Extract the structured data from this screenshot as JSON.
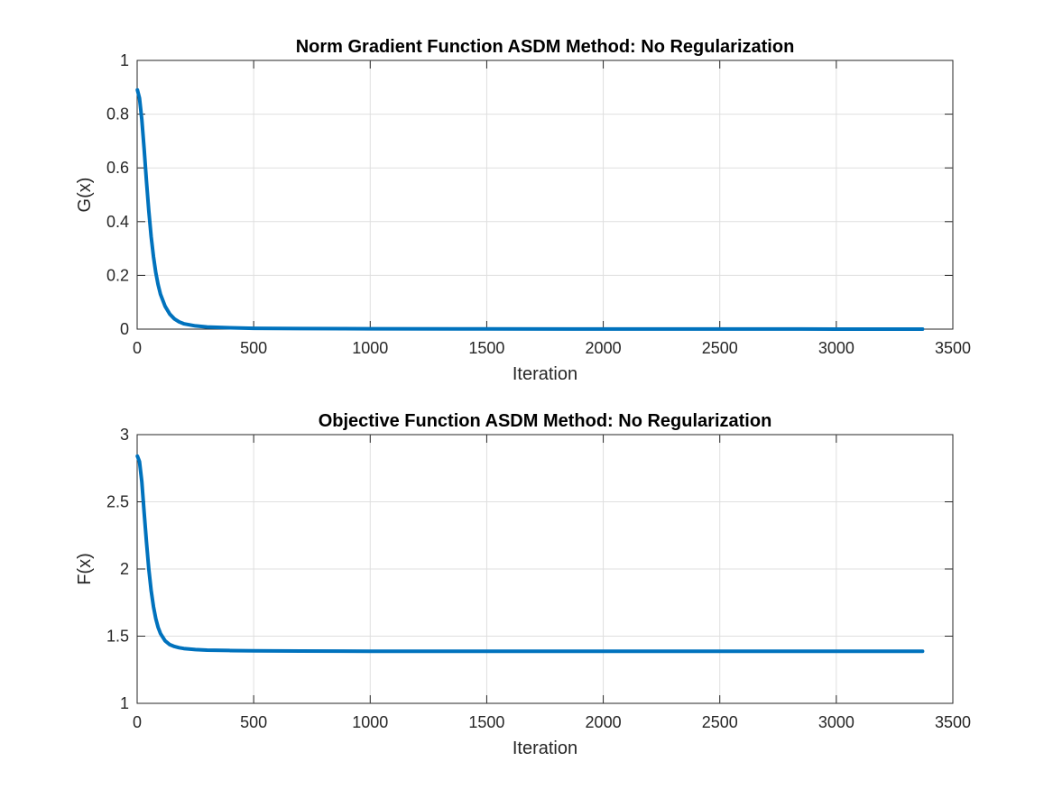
{
  "chart_data": [
    {
      "type": "line",
      "title": "Norm Gradient Function ASDM Method: No Regularization",
      "xlabel": "Iteration",
      "ylabel": "G(x)",
      "xlim": [
        0,
        3500
      ],
      "ylim": [
        0,
        1
      ],
      "xticks": [
        0,
        500,
        1000,
        1500,
        2000,
        2500,
        3000,
        3500
      ],
      "yticks": [
        0,
        0.2,
        0.4,
        0.6,
        0.8,
        1
      ],
      "xtick_labels": [
        "0",
        "500",
        "1000",
        "1500",
        "2000",
        "2500",
        "3000",
        "3500"
      ],
      "ytick_labels": [
        "0",
        "0.2",
        "0.4",
        "0.6",
        "0.8",
        "1"
      ],
      "grid": true,
      "series": [
        {
          "color": "#0072BD",
          "x": [
            1,
            10,
            20,
            30,
            40,
            50,
            60,
            70,
            80,
            90,
            100,
            120,
            140,
            160,
            180,
            200,
            250,
            300,
            400,
            500,
            700,
            1000,
            1500,
            2000,
            2500,
            3000,
            3370
          ],
          "y": [
            0.89,
            0.86,
            0.78,
            0.67,
            0.55,
            0.44,
            0.345,
            0.27,
            0.21,
            0.165,
            0.13,
            0.085,
            0.056,
            0.038,
            0.027,
            0.02,
            0.012,
            0.008,
            0.005,
            0.003,
            0.002,
            0.0012,
            0.0007,
            0.0005,
            0.0003,
            0.0002,
            0.0002
          ]
        }
      ]
    },
    {
      "type": "line",
      "title": "Objective Function ASDM Method: No Regularization",
      "xlabel": "Iteration",
      "ylabel": "F(x)",
      "xlim": [
        0,
        3500
      ],
      "ylim": [
        1,
        3
      ],
      "xticks": [
        0,
        500,
        1000,
        1500,
        2000,
        2500,
        3000,
        3500
      ],
      "yticks": [
        1,
        1.5,
        2,
        2.5,
        3
      ],
      "xtick_labels": [
        "0",
        "500",
        "1000",
        "1500",
        "2000",
        "2500",
        "3000",
        "3500"
      ],
      "ytick_labels": [
        "1",
        "1.5",
        "2",
        "2.5",
        "3"
      ],
      "grid": true,
      "series": [
        {
          "color": "#0072BD",
          "x": [
            1,
            10,
            20,
            30,
            40,
            50,
            60,
            70,
            80,
            90,
            100,
            120,
            140,
            160,
            180,
            200,
            250,
            300,
            400,
            500,
            700,
            1000,
            1500,
            2000,
            2500,
            3000,
            3370
          ],
          "y": [
            2.84,
            2.8,
            2.65,
            2.42,
            2.2,
            2.0,
            1.84,
            1.72,
            1.63,
            1.565,
            1.52,
            1.465,
            1.437,
            1.423,
            1.414,
            1.408,
            1.4,
            1.396,
            1.393,
            1.391,
            1.389,
            1.388,
            1.388,
            1.388,
            1.388,
            1.388,
            1.388
          ]
        }
      ]
    }
  ]
}
